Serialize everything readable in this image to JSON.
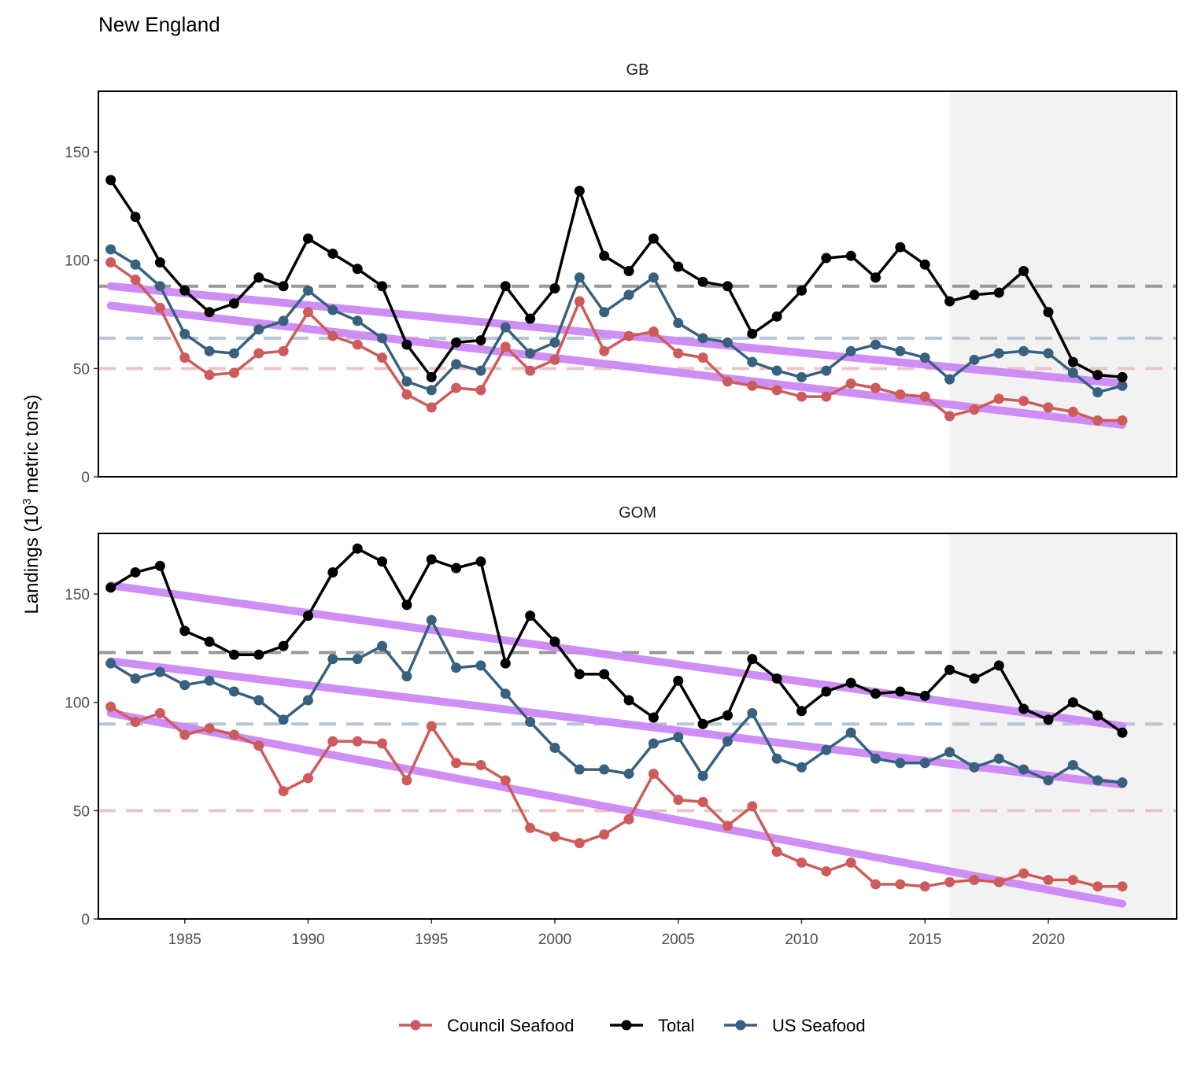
{
  "chart_data": {
    "type": "line",
    "title": "New England",
    "ylabel_main": "Landings (10",
    "ylabel_sup": "3",
    "ylabel_tail": " metric tons)",
    "xlim": [
      1981.5,
      2025.2
    ],
    "ylim": [
      0,
      178
    ],
    "x_ticks": [
      1985,
      1990,
      1995,
      2000,
      2005,
      2010,
      2015,
      2020
    ],
    "y_ticks": [
      0,
      50,
      100,
      150
    ],
    "highlight_range": [
      2016,
      2025
    ],
    "colors": {
      "Council Seafood": "#cd5b5b",
      "Total": "#000000",
      "US Seafood": "#37617f",
      "trend": "#cc88f5",
      "highlight": "#f2f2f2"
    },
    "legend": {
      "position": "bottom",
      "entries": [
        "Council Seafood",
        "Total",
        "US Seafood"
      ]
    },
    "x": [
      1982,
      1983,
      1984,
      1985,
      1986,
      1987,
      1988,
      1989,
      1990,
      1991,
      1992,
      1993,
      1994,
      1995,
      1996,
      1997,
      1998,
      1999,
      2000,
      2001,
      2002,
      2003,
      2004,
      2005,
      2006,
      2007,
      2008,
      2009,
      2010,
      2011,
      2012,
      2013,
      2014,
      2015,
      2016,
      2017,
      2018,
      2019,
      2020,
      2021,
      2022,
      2023
    ],
    "panels": [
      {
        "name": "GB",
        "series": [
          {
            "name": "Total",
            "values": [
              137,
              120,
              99,
              86,
              76,
              80,
              92,
              88,
              110,
              103,
              96,
              88,
              61,
              46,
              62,
              63,
              88,
              73,
              87,
              132,
              102,
              95,
              110,
              97,
              90,
              88,
              66,
              74,
              86,
              101,
              102,
              92,
              106,
              98,
              81,
              84,
              85,
              95,
              76,
              53,
              47,
              46
            ]
          },
          {
            "name": "US Seafood",
            "values": [
              105,
              98,
              88,
              66,
              58,
              57,
              68,
              72,
              86,
              77,
              72,
              64,
              44,
              40,
              52,
              49,
              69,
              57,
              62,
              92,
              76,
              84,
              92,
              71,
              64,
              62,
              53,
              49,
              46,
              49,
              58,
              61,
              58,
              55,
              45,
              54,
              57,
              58,
              57,
              48,
              39,
              42
            ]
          },
          {
            "name": "Council Seafood",
            "values": [
              99,
              91,
              78,
              55,
              47,
              48,
              57,
              58,
              76,
              65,
              61,
              55,
              38,
              32,
              41,
              40,
              60,
              49,
              54,
              81,
              58,
              65,
              67,
              57,
              55,
              44,
              42,
              40,
              37,
              37,
              43,
              41,
              38,
              37,
              28,
              31,
              36,
              35,
              32,
              30,
              26,
              26
            ]
          }
        ],
        "trends": [
          [
            1982,
            88,
            2023,
            43
          ],
          [
            1982,
            79,
            2023,
            24
          ]
        ],
        "hlines": [
          {
            "y": 88,
            "color": "#999999"
          },
          {
            "y": 64,
            "color": "#b6c6d5"
          },
          {
            "y": 50,
            "color": "#ebc5c5"
          }
        ]
      },
      {
        "name": "GOM",
        "series": [
          {
            "name": "Total",
            "values": [
              153,
              160,
              163,
              133,
              128,
              122,
              122,
              126,
              140,
              160,
              171,
              165,
              145,
              166,
              162,
              165,
              118,
              140,
              128,
              113,
              113,
              101,
              93,
              110,
              90,
              94,
              120,
              111,
              96,
              105,
              109,
              104,
              105,
              103,
              115,
              111,
              117,
              97,
              92,
              100,
              94,
              86
            ]
          },
          {
            "name": "US Seafood",
            "values": [
              118,
              111,
              114,
              108,
              110,
              105,
              101,
              92,
              101,
              120,
              120,
              126,
              112,
              138,
              116,
              117,
              104,
              91,
              79,
              69,
              69,
              67,
              81,
              84,
              66,
              82,
              95,
              74,
              70,
              78,
              86,
              74,
              72,
              72,
              77,
              70,
              74,
              69,
              64,
              71,
              64,
              63
            ]
          },
          {
            "name": "Council Seafood",
            "values": [
              98,
              91,
              95,
              85,
              88,
              85,
              80,
              59,
              65,
              82,
              82,
              81,
              64,
              89,
              72,
              71,
              64,
              42,
              38,
              35,
              39,
              46,
              67,
              55,
              54,
              43,
              52,
              31,
              26,
              22,
              26,
              16,
              16,
              15,
              17,
              18,
              17,
              21,
              18,
              18,
              15,
              15
            ]
          }
        ],
        "trends": [
          [
            1982,
            154,
            2023,
            89
          ],
          [
            1982,
            119,
            2023,
            62
          ],
          [
            1982,
            95,
            2023,
            7
          ]
        ],
        "hlines": [
          {
            "y": 123,
            "color": "#999999"
          },
          {
            "y": 90,
            "color": "#b6c6d5"
          },
          {
            "y": 50,
            "color": "#ebc5c5"
          }
        ]
      }
    ]
  }
}
